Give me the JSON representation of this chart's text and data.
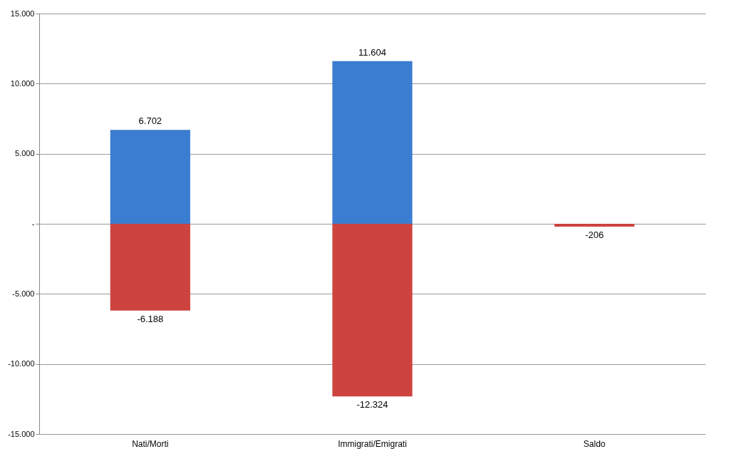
{
  "chart_data": {
    "type": "bar",
    "categories": [
      "Nati/Morti",
      "Immigrati/Emigrati",
      "Saldo"
    ],
    "stacked": true,
    "series": [
      {
        "color": "#3b7dd0",
        "values": [
          6702,
          11604,
          null
        ],
        "value_labels": [
          "6.702",
          "11.604",
          null
        ]
      },
      {
        "color": "#cc4340",
        "values": [
          -6188,
          -12324,
          -206
        ],
        "value_labels": [
          "-6.188",
          "-12.324",
          "-206"
        ]
      }
    ],
    "ylim": [
      -15000,
      15000
    ],
    "yticks": [
      {
        "value": -15000,
        "label": "-15.000"
      },
      {
        "value": -10000,
        "label": "-10.000"
      },
      {
        "value": -5000,
        "label": "-5.000"
      },
      {
        "value": 0,
        "label": "-"
      },
      {
        "value": 5000,
        "label": "5.000"
      },
      {
        "value": 10000,
        "label": "10.000"
      },
      {
        "value": 15000,
        "label": "15.000"
      }
    ],
    "grid": "y"
  }
}
